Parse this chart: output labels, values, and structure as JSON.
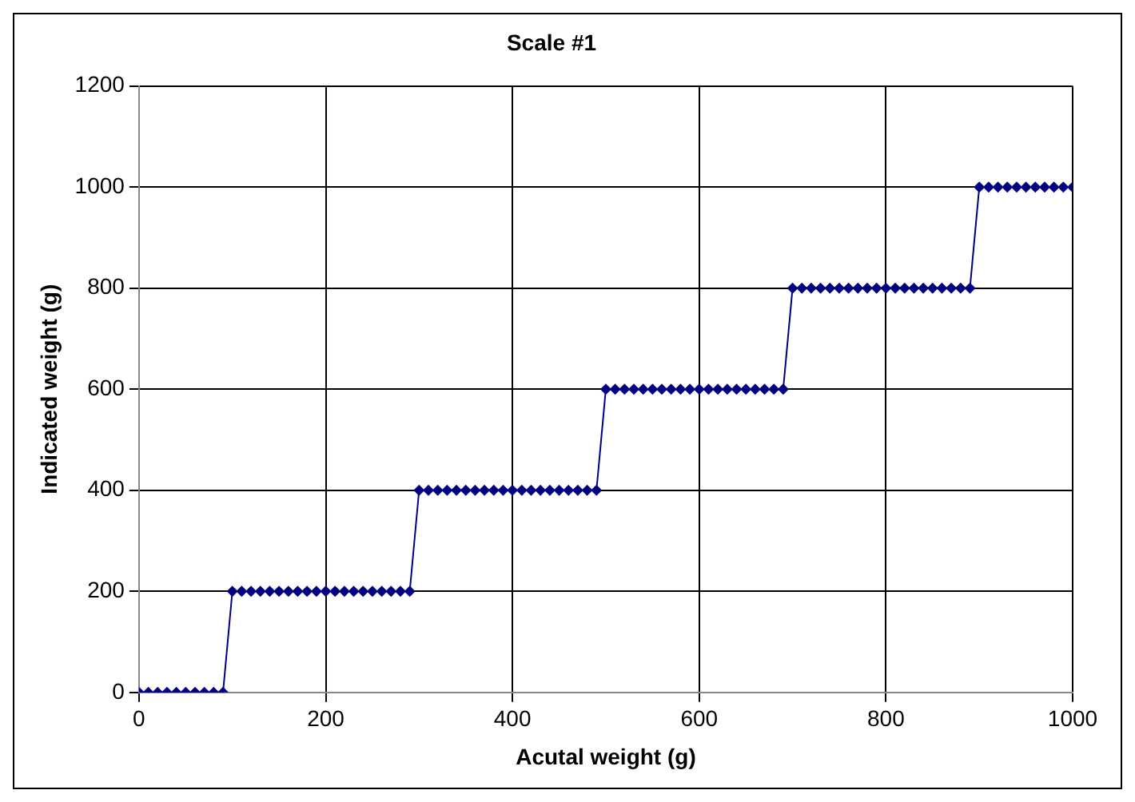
{
  "chart_data": {
    "type": "line",
    "title": "Scale #1",
    "xlabel": "Acutal weight (g)",
    "ylabel": "Indicated weight (g)",
    "x": [
      0,
      10,
      20,
      30,
      40,
      50,
      60,
      70,
      80,
      90,
      100,
      110,
      120,
      130,
      140,
      150,
      160,
      170,
      180,
      190,
      200,
      210,
      220,
      230,
      240,
      250,
      260,
      270,
      280,
      290,
      300,
      310,
      320,
      330,
      340,
      350,
      360,
      370,
      380,
      390,
      400,
      410,
      420,
      430,
      440,
      450,
      460,
      470,
      480,
      490,
      500,
      510,
      520,
      530,
      540,
      550,
      560,
      570,
      580,
      590,
      600,
      610,
      620,
      630,
      640,
      650,
      660,
      670,
      680,
      690,
      700,
      710,
      720,
      730,
      740,
      750,
      760,
      770,
      780,
      790,
      800,
      810,
      820,
      830,
      840,
      850,
      860,
      870,
      880,
      890,
      900,
      910,
      920,
      930,
      940,
      950,
      960,
      970,
      980,
      990,
      1000
    ],
    "series": [
      {
        "color": "#000080",
        "values": [
          0,
          0,
          0,
          0,
          0,
          0,
          0,
          0,
          0,
          0,
          200,
          200,
          200,
          200,
          200,
          200,
          200,
          200,
          200,
          200,
          200,
          200,
          200,
          200,
          200,
          200,
          200,
          200,
          200,
          200,
          400,
          400,
          400,
          400,
          400,
          400,
          400,
          400,
          400,
          400,
          400,
          400,
          400,
          400,
          400,
          400,
          400,
          400,
          400,
          400,
          600,
          600,
          600,
          600,
          600,
          600,
          600,
          600,
          600,
          600,
          600,
          600,
          600,
          600,
          600,
          600,
          600,
          600,
          600,
          600,
          800,
          800,
          800,
          800,
          800,
          800,
          800,
          800,
          800,
          800,
          800,
          800,
          800,
          800,
          800,
          800,
          800,
          800,
          800,
          800,
          1000,
          1000,
          1000,
          1000,
          1000,
          1000,
          1000,
          1000,
          1000,
          1000,
          1000
        ]
      }
    ],
    "xlim": [
      0,
      1000
    ],
    "xticks": [
      0,
      200,
      400,
      600,
      800,
      1000
    ],
    "ylim": [
      0,
      1200
    ],
    "yticks": [
      0,
      200,
      400,
      600,
      800,
      1000,
      1200
    ],
    "grid": true,
    "legend": false,
    "marker": "diamond",
    "line_style": "solid"
  }
}
